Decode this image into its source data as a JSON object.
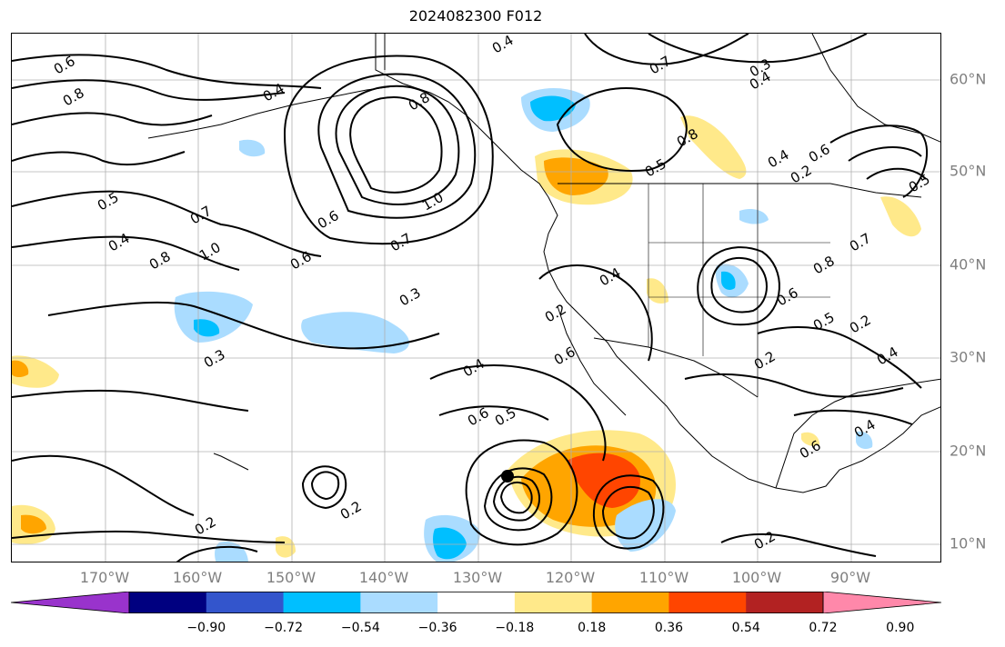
{
  "title": "2024082300 F012",
  "map": {
    "lon_labels": [
      "170°W",
      "160°W",
      "150°W",
      "140°W",
      "130°W",
      "120°W",
      "110°W",
      "100°W",
      "90°W"
    ],
    "lat_labels": [
      "60°N",
      "50°N",
      "40°N",
      "30°N",
      "20°N",
      "10°N"
    ],
    "contour_labels": [
      "0.4",
      "0.6",
      "0.3",
      "0.4",
      "0.7",
      "0.8",
      "0.4",
      "1.0",
      "0.7",
      "0.8",
      "0.6",
      "0.5",
      "0.4",
      "0.8",
      "1.0",
      "0.6",
      "0.5",
      "0.4",
      "0.6",
      "0.7",
      "0.8",
      "0.4",
      "0.3",
      "0.6",
      "0.4",
      "0.2",
      "0.2",
      "0.3",
      "0.5",
      "0.6",
      "0.2",
      "0.4",
      "0.6",
      "0.5",
      "0.2",
      "0.2",
      "0.2",
      "0.4",
      "0.5",
      "0.8",
      "0.7",
      "0.6",
      "0.2"
    ],
    "colors": {
      "contour": "#000000",
      "coast": "#000000",
      "grid": "#b0b0b0",
      "axis_label": "#7f7f7f"
    }
  },
  "colorbar": {
    "ticks": [
      "−0.90",
      "−0.72",
      "−0.54",
      "−0.36",
      "−0.18",
      "0.18",
      "0.36",
      "0.54",
      "0.72",
      "0.90"
    ],
    "colors": [
      "#9933cc",
      "#000080",
      "#3355cc",
      "#00bfff",
      "#aadcff",
      "#ffffff",
      "#ffe98a",
      "#ffa500",
      "#ff4500",
      "#b22222",
      "#ff88aa"
    ]
  }
}
